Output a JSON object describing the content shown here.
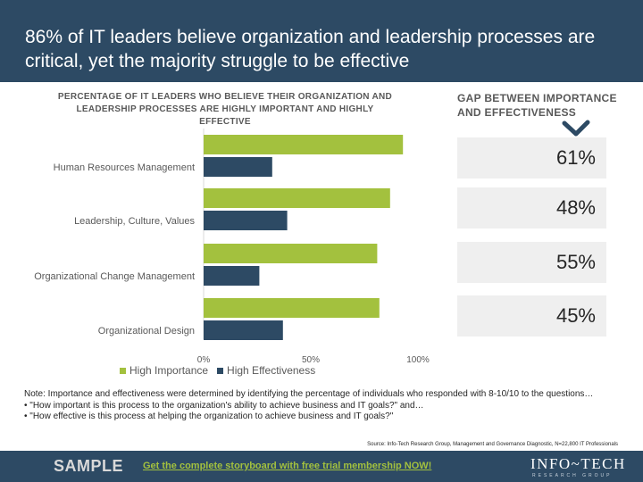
{
  "header": {
    "title": "86% of IT leaders believe organization and leadership processes are critical, yet the majority struggle to be effective"
  },
  "gap": {
    "title": "GAP BETWEEN IMPORTANCE AND EFFECTIVENESS",
    "values": [
      "61%",
      "48%",
      "55%",
      "45%"
    ]
  },
  "chart_data": {
    "type": "bar",
    "orientation": "horizontal",
    "title": "PERCENTAGE OF IT LEADERS WHO BELIEVE THEIR ORGANIZATION AND LEADERSHIP PROCESSES ARE HIGHLY IMPORTANT AND HIGHLY EFFECTIVE",
    "categories": [
      "Human Resources Management",
      "Leadership, Culture, Values",
      "Organizational Change Management",
      "Organizational Design"
    ],
    "series": [
      {
        "name": "High Importance",
        "values": [
          93,
          87,
          81,
          82
        ],
        "color": "#a3c13e"
      },
      {
        "name": "High Effectiveness",
        "values": [
          32,
          39,
          26,
          37
        ],
        "color": "#2d4a64"
      }
    ],
    "xlim": [
      0,
      100
    ],
    "xticks": [
      "0%",
      "50%",
      "100%"
    ],
    "xtick_values": [
      0,
      50,
      100
    ],
    "grid": false,
    "legend_position": "bottom-left"
  },
  "note": {
    "lines": [
      "Note: Importance and effectiveness were determined by identifying the percentage of individuals who responded with 8-10/10 to the questions…",
      "•  \"How important is this process to the organization's ability to achieve business and IT goals?\" and…",
      "•  \"How effective is this process at helping the organization to achieve business and IT goals?\""
    ],
    "source": "Source: Info-Tech Research Group, Management and Governance Diagnostic, N=22,800 IT Professionals"
  },
  "footer": {
    "sample": "SAMPLE",
    "cta": "Get the complete storyboard with free trial membership NOW!",
    "logo": "INFO~TECH",
    "logo_sub": "RESEARCH GROUP"
  }
}
